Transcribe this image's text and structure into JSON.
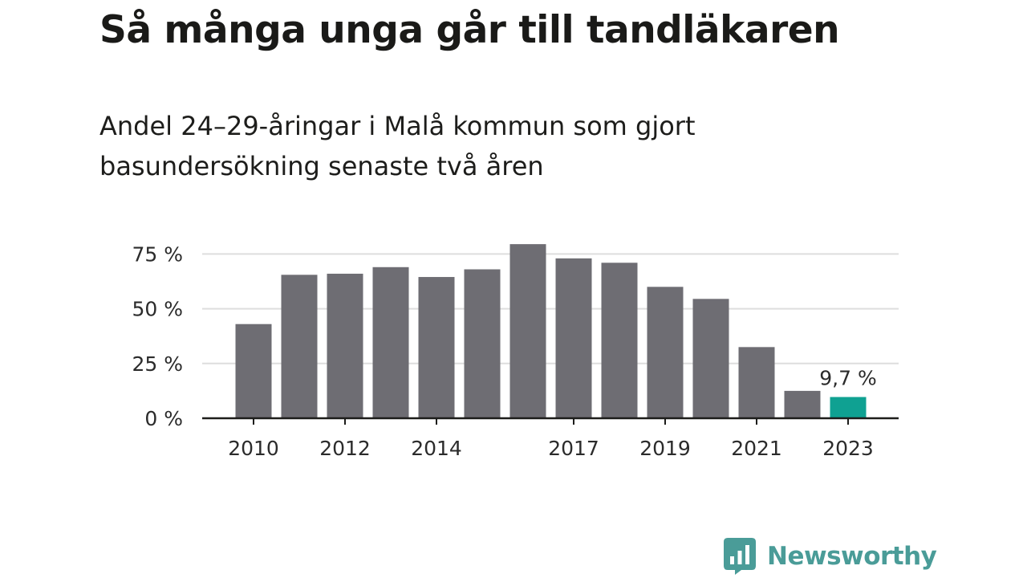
{
  "title": "Så många unga går till tandläkaren",
  "subtitle": "Andel 24–29-åringar i Malå kommun som gjort basundersökning senaste två åren",
  "brand": {
    "name": "Newsworthy",
    "icon": "newsworthy-logo-icon",
    "color": "#4a9c98"
  },
  "colors": {
    "bar": "#6e6d73",
    "highlight": "#0fa192",
    "grid": "#dedede",
    "axis": "#1d1d1b"
  },
  "chart_data": {
    "type": "bar",
    "title": "Så många unga går till tandläkaren",
    "subtitle": "Andel 24–29-åringar i Malå kommun som gjort basundersökning senaste två åren",
    "xlabel": "",
    "ylabel": "",
    "categories": [
      2010,
      2011,
      2012,
      2013,
      2014,
      2015,
      2016,
      2017,
      2018,
      2019,
      2020,
      2021,
      2022,
      2023
    ],
    "values": [
      43,
      65.5,
      66,
      69,
      64.5,
      68,
      79.5,
      73,
      71,
      60,
      54.5,
      32.5,
      12.5,
      9.7
    ],
    "unit": "%",
    "ylim": [
      0,
      80
    ],
    "yticks": [
      0,
      25,
      50,
      75
    ],
    "ytick_labels": [
      "0 %",
      "25 %",
      "50 %",
      "75 %"
    ],
    "xtick_labels": [
      "2010",
      "2012",
      "2014",
      "2017",
      "2019",
      "2021",
      "2023"
    ],
    "grid": true,
    "highlight": {
      "category": 2023,
      "label": "9,7 %"
    }
  }
}
